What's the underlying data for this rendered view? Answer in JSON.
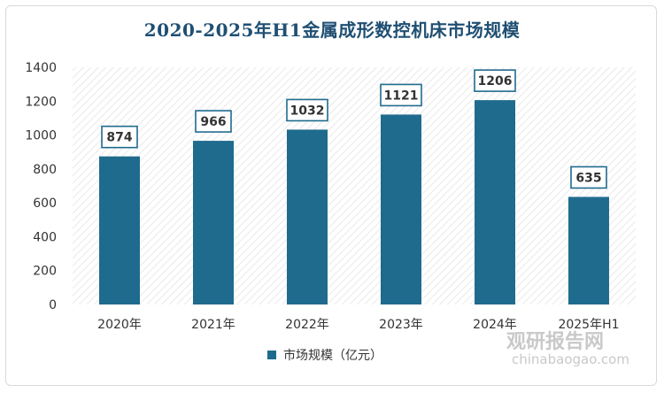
{
  "chart_data": {
    "type": "bar",
    "title": "2020-2025年H1金属成形数控机床市场规模",
    "categories": [
      "2020年",
      "2021年",
      "2022年",
      "2023年",
      "2024年",
      "2025年H1"
    ],
    "series": [
      {
        "name": "市场规模（亿元）",
        "values": [
          874,
          966,
          1032,
          1121,
          1206,
          635
        ]
      }
    ],
    "data_labels": [
      "874",
      "966",
      "1032",
      "1121",
      "1206",
      "635"
    ],
    "ylim": [
      0,
      1400
    ],
    "yticks": [
      0,
      200,
      400,
      600,
      800,
      1000,
      1200,
      1400
    ],
    "grid": false,
    "legend_position": "bottom",
    "bar_color": "#1f6b8e",
    "label_border_color": "#1f6b8e"
  },
  "watermark": {
    "text": "观研报告网",
    "url": "chinabaogao.com"
  }
}
